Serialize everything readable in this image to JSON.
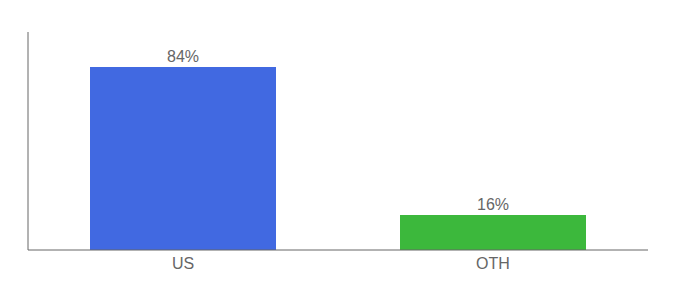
{
  "chart_data": {
    "type": "bar",
    "categories": [
      "US",
      "OTH"
    ],
    "values": [
      84,
      16
    ],
    "value_labels": [
      "84%",
      "16%"
    ],
    "colors": [
      "#4169e1",
      "#3cb83c"
    ],
    "ylim": [
      0,
      100
    ],
    "data_labels": true,
    "tick_labels": "x",
    "grid": false
  }
}
